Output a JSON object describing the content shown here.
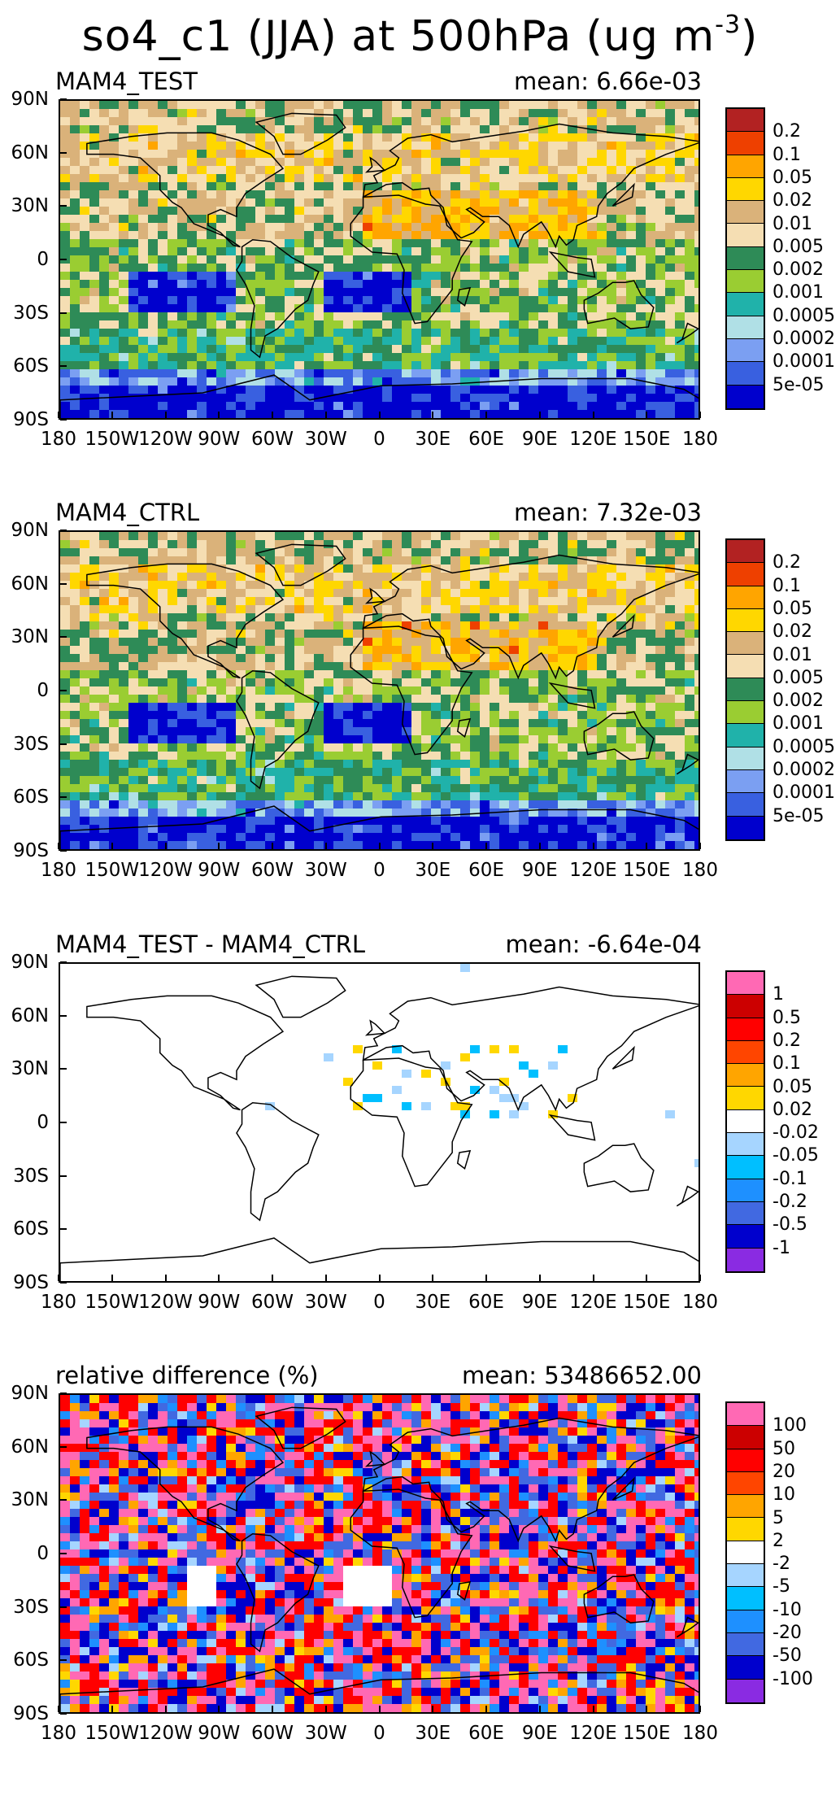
{
  "figure": {
    "title_main": "so4_c1 (JJA) at 500hPa (ug m",
    "title_sup": "-3",
    "title_close": ")"
  },
  "lat_labels": [
    "90N",
    "60N",
    "30N",
    "0",
    "30S",
    "60S",
    "90S"
  ],
  "lon_labels": [
    "180",
    "150W",
    "120W",
    "90W",
    "60W",
    "30W",
    "0",
    "30E",
    "60E",
    "90E",
    "120E",
    "150E",
    "180"
  ],
  "palettes": {
    "abs": [
      "#b22222",
      "#ee4000",
      "#ffa500",
      "#ffd700",
      "#dab27a",
      "#f5deb3",
      "#2e8b57",
      "#9acd32",
      "#20b2aa",
      "#b0e0e6",
      "#7b9ff2",
      "#3960e0",
      "#0000cd"
    ],
    "diff": [
      "#ff69b4",
      "#cc0000",
      "#ff0000",
      "#ff4500",
      "#ffa500",
      "#ffd700",
      "#ffffff",
      "#ffffff",
      "#a6d5ff",
      "#00bfff",
      "#1e90ff",
      "#4169e1",
      "#0000cd",
      "#8a2be2"
    ]
  },
  "chart_data": [
    {
      "type": "heatmap",
      "title": "MAM4_TEST",
      "mean_text": "mean: 6.66e-03",
      "colorbar_ticks": [
        "0.2",
        "0.1",
        "0.05",
        "0.02",
        "0.01",
        "0.005",
        "0.002",
        "0.001",
        "0.0005",
        "0.0002",
        "0.0001",
        "5e-05"
      ],
      "colorbar_colors": [
        "#b22222",
        "#ee4000",
        "#ffa500",
        "#ffd700",
        "#dab27a",
        "#f5deb3",
        "#2e8b57",
        "#9acd32",
        "#20b2aa",
        "#b0e0e6",
        "#7b9ff2",
        "#3960e0",
        "#0000cd"
      ],
      "xlim": [
        -180,
        180
      ],
      "ylim": [
        -90,
        90
      ],
      "style": "abs",
      "seed": 11
    },
    {
      "type": "heatmap",
      "title": "MAM4_CTRL",
      "mean_text": "mean: 7.32e-03",
      "colorbar_ticks": [
        "0.2",
        "0.1",
        "0.05",
        "0.02",
        "0.01",
        "0.005",
        "0.002",
        "0.001",
        "0.0005",
        "0.0002",
        "0.0001",
        "5e-05"
      ],
      "colorbar_colors": [
        "#b22222",
        "#ee4000",
        "#ffa500",
        "#ffd700",
        "#dab27a",
        "#f5deb3",
        "#2e8b57",
        "#9acd32",
        "#20b2aa",
        "#b0e0e6",
        "#7b9ff2",
        "#3960e0",
        "#0000cd"
      ],
      "xlim": [
        -180,
        180
      ],
      "ylim": [
        -90,
        90
      ],
      "style": "abs",
      "seed": 23
    },
    {
      "type": "heatmap",
      "title": "MAM4_TEST - MAM4_CTRL",
      "mean_text": "mean: -6.64e-04",
      "colorbar_ticks": [
        "1",
        "0.5",
        "0.2",
        "0.1",
        "0.05",
        "0.02",
        "-0.02",
        "-0.05",
        "-0.1",
        "-0.2",
        "-0.5",
        "-1"
      ],
      "colorbar_colors": [
        "#ff69b4",
        "#cc0000",
        "#ff0000",
        "#ff4500",
        "#ffa500",
        "#ffd700",
        "#ffffff",
        "#a6d5ff",
        "#00bfff",
        "#1e90ff",
        "#4169e1",
        "#0000cd",
        "#8a2be2"
      ],
      "xlim": [
        -180,
        180
      ],
      "ylim": [
        -90,
        90
      ],
      "style": "sparse",
      "seed": 37
    },
    {
      "type": "heatmap",
      "title": "relative difference (%)",
      "mean_text": "mean: 53486652.00",
      "colorbar_ticks": [
        "100",
        "50",
        "20",
        "10",
        "5",
        "2",
        "-2",
        "-5",
        "-10",
        "-20",
        "-50",
        "-100"
      ],
      "colorbar_colors": [
        "#ff69b4",
        "#cc0000",
        "#ff0000",
        "#ff4500",
        "#ffa500",
        "#ffd700",
        "#ffffff",
        "#a6d5ff",
        "#00bfff",
        "#1e90ff",
        "#4169e1",
        "#0000cd",
        "#8a2be2"
      ],
      "xlim": [
        -180,
        180
      ],
      "ylim": [
        -90,
        90
      ],
      "style": "rel",
      "seed": 51
    }
  ]
}
